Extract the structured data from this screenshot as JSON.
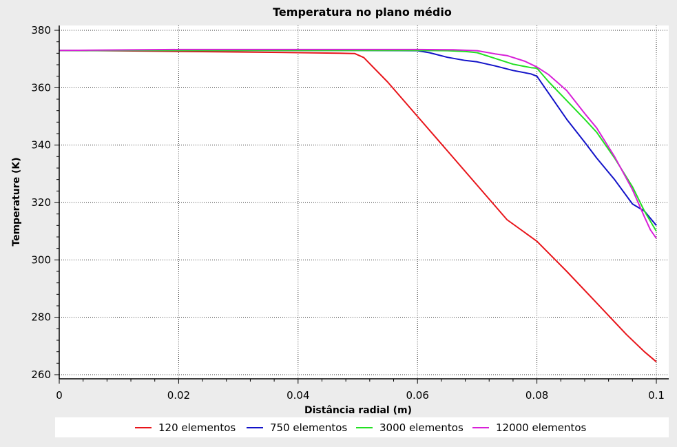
{
  "chart_data": {
    "type": "line",
    "title": "Temperatura no plano médio",
    "xlabel": "Distância radial (m)",
    "ylabel": "Temperature (K)",
    "xlim": [
      0,
      0.1
    ],
    "ylim": [
      260,
      380
    ],
    "x_ticks": [
      0,
      0.02,
      0.04,
      0.06,
      0.08,
      0.1
    ],
    "x_tick_labels": [
      "0",
      "0.02",
      "0.04",
      "0.06",
      "0.08",
      "0.1"
    ],
    "y_ticks": [
      260,
      280,
      300,
      320,
      340,
      360,
      380
    ],
    "y_tick_labels": [
      "260",
      "280",
      "300",
      "320",
      "340",
      "360",
      "380"
    ],
    "grid": true,
    "legend_position": "bottom",
    "series": [
      {
        "name": "120 elementos",
        "color": "#e8141a",
        "points": [
          [
            0,
            373
          ],
          [
            0.008,
            372.9
          ],
          [
            0.017,
            372.7
          ],
          [
            0.027,
            372.5
          ],
          [
            0.037,
            372.3
          ],
          [
            0.047,
            372.0
          ],
          [
            0.0495,
            371.9
          ],
          [
            0.051,
            370.5
          ],
          [
            0.055,
            362
          ],
          [
            0.06,
            350
          ],
          [
            0.065,
            338
          ],
          [
            0.07,
            326
          ],
          [
            0.075,
            314
          ],
          [
            0.08,
            306.5
          ],
          [
            0.085,
            296
          ],
          [
            0.09,
            285
          ],
          [
            0.095,
            274
          ],
          [
            0.098,
            268
          ],
          [
            0.1,
            264.5
          ]
        ]
      },
      {
        "name": "750 elementos",
        "color": "#1212c8",
        "points": [
          [
            0,
            373
          ],
          [
            0.02,
            373
          ],
          [
            0.04,
            373
          ],
          [
            0.05,
            373
          ],
          [
            0.06,
            372.9
          ],
          [
            0.062,
            372.2
          ],
          [
            0.065,
            370.6
          ],
          [
            0.068,
            369.5
          ],
          [
            0.07,
            369
          ],
          [
            0.073,
            367.6
          ],
          [
            0.076,
            366
          ],
          [
            0.079,
            364.8
          ],
          [
            0.08,
            364
          ],
          [
            0.082,
            358
          ],
          [
            0.085,
            349
          ],
          [
            0.088,
            341
          ],
          [
            0.09,
            335.5
          ],
          [
            0.093,
            328
          ],
          [
            0.096,
            319.5
          ],
          [
            0.098,
            317
          ],
          [
            0.1,
            312
          ]
        ]
      },
      {
        "name": "3000 elementos",
        "color": "#22e022",
        "points": [
          [
            0,
            373
          ],
          [
            0.02,
            373
          ],
          [
            0.04,
            373
          ],
          [
            0.06,
            373
          ],
          [
            0.065,
            372.9
          ],
          [
            0.068,
            372.6
          ],
          [
            0.07,
            372.2
          ],
          [
            0.073,
            370.2
          ],
          [
            0.076,
            368.2
          ],
          [
            0.079,
            367
          ],
          [
            0.08,
            366.8
          ],
          [
            0.082,
            362
          ],
          [
            0.085,
            355.5
          ],
          [
            0.088,
            349
          ],
          [
            0.09,
            344.5
          ],
          [
            0.093,
            335.5
          ],
          [
            0.096,
            325.5
          ],
          [
            0.098,
            317
          ],
          [
            0.1,
            310
          ]
        ]
      },
      {
        "name": "12000 elementos",
        "color": "#d820d8",
        "points": [
          [
            0,
            373
          ],
          [
            0.02,
            373.3
          ],
          [
            0.04,
            373.3
          ],
          [
            0.06,
            373.3
          ],
          [
            0.066,
            373.2
          ],
          [
            0.07,
            372.9
          ],
          [
            0.073,
            371.8
          ],
          [
            0.075,
            371.2
          ],
          [
            0.078,
            369.2
          ],
          [
            0.08,
            367.2
          ],
          [
            0.082,
            364.5
          ],
          [
            0.085,
            359
          ],
          [
            0.088,
            351
          ],
          [
            0.09,
            346
          ],
          [
            0.093,
            336
          ],
          [
            0.096,
            324.5
          ],
          [
            0.098,
            315
          ],
          [
            0.099,
            310.5
          ],
          [
            0.1,
            307.5
          ]
        ]
      }
    ]
  }
}
